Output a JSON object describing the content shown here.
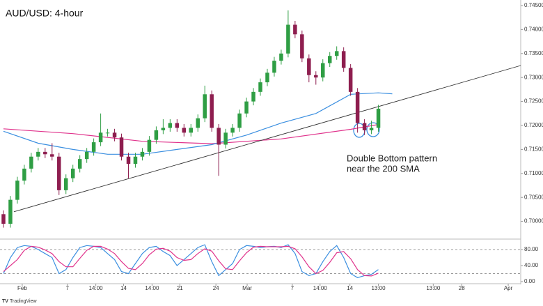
{
  "chart_data": [
    {
      "type": "candlestick",
      "title": "AUD/USD: 4-hour",
      "source": "TradingView",
      "annotation": [
        "Double Bottom pattern",
        "near the 200 SMA"
      ],
      "up_color": "#2f9e44",
      "down_color": "#8e1e4f",
      "open": [
        0.7015,
        0.6995,
        0.7045,
        0.7085,
        0.711,
        0.7135,
        0.7145,
        0.714,
        0.7135,
        0.7065,
        0.709,
        0.711,
        0.713,
        0.7145,
        0.7165,
        0.7185,
        0.7185,
        0.7175,
        0.7135,
        0.712,
        0.7135,
        0.7145,
        0.717,
        0.719,
        0.7195,
        0.7205,
        0.7195,
        0.7185,
        0.7195,
        0.7215,
        0.7265,
        0.7195,
        0.716,
        0.7185,
        0.7195,
        0.7225,
        0.725,
        0.727,
        0.729,
        0.731,
        0.7335,
        0.735,
        0.741,
        0.739,
        0.734,
        0.7305,
        0.73,
        0.733,
        0.7345,
        0.7355,
        0.732,
        0.727,
        0.7205,
        0.719,
        0.7195
      ],
      "high": [
        0.7023,
        0.7053,
        0.7093,
        0.7118,
        0.7143,
        0.7153,
        0.7153,
        0.7163,
        0.7143,
        0.7098,
        0.7118,
        0.7138,
        0.7153,
        0.7173,
        0.7225,
        0.7193,
        0.7193,
        0.7183,
        0.7143,
        0.7143,
        0.7153,
        0.7178,
        0.7198,
        0.7213,
        0.7213,
        0.7213,
        0.7203,
        0.7203,
        0.7223,
        0.7283,
        0.7273,
        0.7203,
        0.7193,
        0.7203,
        0.7233,
        0.7258,
        0.7278,
        0.7298,
        0.7318,
        0.7343,
        0.7358,
        0.744,
        0.7418,
        0.7398,
        0.7348,
        0.7313,
        0.7338,
        0.7353,
        0.7365,
        0.7363,
        0.7328,
        0.7278,
        0.7213,
        0.721,
        0.7243
      ],
      "low": [
        0.6987,
        0.6987,
        0.7037,
        0.7077,
        0.7102,
        0.7127,
        0.7132,
        0.7127,
        0.7055,
        0.7057,
        0.7082,
        0.7102,
        0.7122,
        0.7137,
        0.7157,
        0.7177,
        0.7167,
        0.7127,
        0.709,
        0.7112,
        0.7127,
        0.7137,
        0.7162,
        0.7182,
        0.7187,
        0.7187,
        0.7177,
        0.7177,
        0.7187,
        0.7207,
        0.7187,
        0.7095,
        0.7152,
        0.7177,
        0.7187,
        0.7217,
        0.7242,
        0.7262,
        0.7282,
        0.7302,
        0.7327,
        0.7342,
        0.7382,
        0.7332,
        0.729,
        0.7285,
        0.7292,
        0.7322,
        0.7337,
        0.7312,
        0.7262,
        0.7185,
        0.718,
        0.7182,
        0.7187
      ],
      "close": [
        0.6995,
        0.7045,
        0.7085,
        0.711,
        0.7135,
        0.7145,
        0.714,
        0.7135,
        0.7065,
        0.709,
        0.711,
        0.713,
        0.7145,
        0.7165,
        0.7185,
        0.7185,
        0.7175,
        0.7135,
        0.712,
        0.7135,
        0.7145,
        0.717,
        0.719,
        0.7195,
        0.7205,
        0.7195,
        0.7185,
        0.7195,
        0.7215,
        0.7265,
        0.7195,
        0.716,
        0.7185,
        0.7195,
        0.7225,
        0.725,
        0.727,
        0.729,
        0.731,
        0.7335,
        0.735,
        0.741,
        0.739,
        0.734,
        0.7305,
        0.73,
        0.733,
        0.7345,
        0.7355,
        0.732,
        0.727,
        0.7205,
        0.719,
        0.7195,
        0.7235
      ],
      "lines": [
        {
          "color": "#e0338c",
          "x": [
            0,
            10,
            20,
            30,
            40,
            50,
            54
          ],
          "values": [
            0.7193,
            0.7183,
            0.7167,
            0.7162,
            0.7172,
            0.7192,
            0.7202
          ]
        },
        {
          "color": "#3b8fe0",
          "x": [
            0,
            5,
            10,
            15,
            20,
            25,
            30,
            35,
            40,
            45,
            50,
            54,
            56
          ],
          "values": [
            0.7188,
            0.7163,
            0.715,
            0.714,
            0.714,
            0.715,
            0.716,
            0.718,
            0.7205,
            0.7225,
            0.7265,
            0.7268,
            0.7266
          ]
        },
        {
          "color": "#333333",
          "x": [
            1.5,
            74.5
          ],
          "values": [
            0.702,
            0.7325
          ]
        }
      ],
      "xlim": [
        -0.5,
        74.5
      ],
      "ylim": [
        0.69631,
        0.74616
      ],
      "xticks": [
        {
          "value": 2.7,
          "label": "Feb"
        },
        {
          "value": 9.2,
          "label": "7"
        },
        {
          "value": 13.3,
          "label": "14:00"
        },
        {
          "value": 17.3,
          "label": "14"
        },
        {
          "value": 21.4,
          "label": "14:00"
        },
        {
          "value": 25.4,
          "label": "21"
        },
        {
          "value": 30.6,
          "label": "24"
        },
        {
          "value": 35.1,
          "label": "Mar"
        },
        {
          "value": 41.6,
          "label": "7"
        },
        {
          "value": 45.6,
          "label": "14:00"
        },
        {
          "value": 49.9,
          "label": "14"
        },
        {
          "value": 54.0,
          "label": "13:00"
        },
        {
          "value": 61.9,
          "label": "13:00"
        },
        {
          "value": 66.0,
          "label": "28"
        },
        {
          "value": 72.7,
          "label": "Apr"
        }
      ],
      "yticks": [
        {
          "value": 0.7,
          "label": "0.70000"
        },
        {
          "value": 0.705,
          "label": "0.70500"
        },
        {
          "value": 0.71,
          "label": "0.71000"
        },
        {
          "value": 0.715,
          "label": "0.71500"
        },
        {
          "value": 0.72,
          "label": "0.72000"
        },
        {
          "value": 0.725,
          "label": "0.72500"
        },
        {
          "value": 0.73,
          "label": "0.73000"
        },
        {
          "value": 0.735,
          "label": "0.73500"
        },
        {
          "value": 0.74,
          "label": "0.74000"
        },
        {
          "value": 0.745,
          "label": "0.74500"
        }
      ]
    },
    {
      "type": "line",
      "xlim": [
        -0.5,
        74.5
      ],
      "ylim": [
        0,
        100
      ],
      "bands": [
        20,
        80
      ],
      "yticks": [
        {
          "value": 0,
          "label": "0.00"
        },
        {
          "value": 40,
          "label": "40.00"
        },
        {
          "value": 80,
          "label": "80.00"
        }
      ],
      "series": [
        {
          "color": "#3b8fe0",
          "values": [
            20,
            60,
            85,
            90,
            88,
            80,
            70,
            60,
            20,
            30,
            60,
            85,
            90,
            88,
            85,
            70,
            55,
            25,
            20,
            45,
            70,
            85,
            88,
            75,
            65,
            40,
            55,
            70,
            85,
            92,
            50,
            15,
            30,
            45,
            80,
            90,
            88,
            85,
            87,
            88,
            85,
            92,
            70,
            25,
            15,
            20,
            50,
            75,
            90,
            60,
            20,
            10,
            15,
            18,
            30
          ]
        },
        {
          "color": "#e0338c",
          "values": [
            25,
            40,
            55,
            78,
            88,
            86,
            79,
            70,
            50,
            37,
            37,
            58,
            78,
            88,
            88,
            81,
            70,
            50,
            33,
            30,
            45,
            67,
            81,
            83,
            76,
            60,
            53,
            55,
            70,
            82,
            76,
            52,
            32,
            30,
            52,
            72,
            86,
            88,
            87,
            87,
            87,
            88,
            82,
            62,
            37,
            20,
            28,
            48,
            72,
            75,
            57,
            30,
            15,
            14,
            21
          ]
        }
      ]
    }
  ]
}
